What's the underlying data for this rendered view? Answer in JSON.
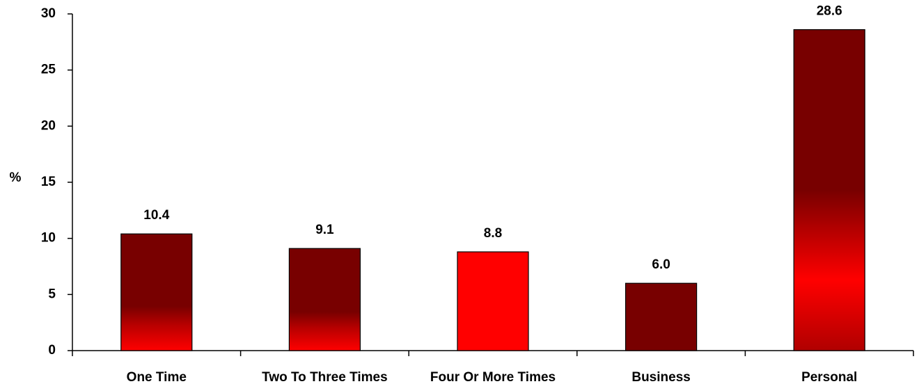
{
  "chart_data": {
    "type": "bar",
    "categories": [
      "One Time",
      "Two To Three Times",
      "Four Or More Times",
      "Business",
      "Personal"
    ],
    "values": [
      10.4,
      9.1,
      8.8,
      6.0,
      28.6
    ],
    "value_labels": [
      "10.4",
      "9.1",
      "8.8",
      "6.0",
      "28.6"
    ],
    "ylabel": "%",
    "ylim": [
      0,
      30
    ],
    "yticks": [
      0,
      5,
      10,
      15,
      20,
      25,
      30
    ],
    "grid": false,
    "legend": "none",
    "bar_styles": [
      "dark-top-red-bottom",
      "dark-top-red-bottom",
      "solid-red",
      "solid-dark",
      "dark-red-dark-gradient"
    ],
    "colors": {
      "dark_red": "#780000",
      "bright_red": "#ff0000",
      "axis": "#000000"
    }
  }
}
